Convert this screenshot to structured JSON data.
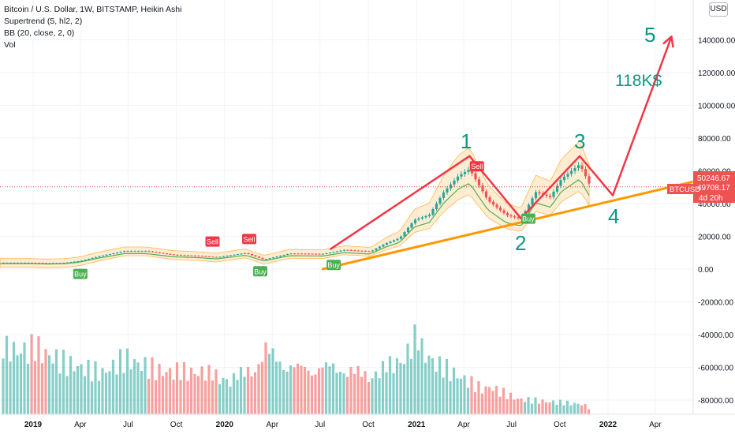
{
  "legend": {
    "title": "Bitcoin / U.S. Dollar, 1W, BITSTAMP, Heikin Ashi",
    "indicator1": "Supertrend (5, hl2, 2)",
    "indicator2": "BB (20, close, 2, 0)",
    "indicator3": "Vol"
  },
  "currency_button": "USD",
  "price_tags": {
    "upper_value": "50246.67",
    "lower_value": "49708.17",
    "countdown": "4d 20h",
    "symbol": "BTCUSD"
  },
  "colors": {
    "up": "#26a69a",
    "down": "#ef5350",
    "drawing": "#f23645",
    "trendline": "#ff9800",
    "wave_label": "#089981",
    "bb_fill": "#ffcc80"
  },
  "annotations": {
    "wave_1": "1",
    "wave_2": "2",
    "wave_3": "3",
    "wave_4": "4",
    "wave_5": "5",
    "target": "118K$"
  },
  "signals": [
    {
      "label": "Sell",
      "date": "2021-04-26"
    },
    {
      "label": "Buy",
      "date": "2021-08-02"
    },
    {
      "label": "Buy",
      "date": "2019-04-01"
    },
    {
      "label": "Sell",
      "date": "2019-12-09"
    },
    {
      "label": "Sell",
      "date": "2020-02-17"
    },
    {
      "label": "Buy",
      "date": "2020-03-09"
    },
    {
      "label": "Buy",
      "date": "2020-07-27"
    }
  ],
  "chart_data": {
    "type": "candlestick",
    "style": "Heikin Ashi",
    "interval": "1W",
    "x_ticks": [
      "2019",
      "Apr",
      "Jul",
      "Oct",
      "2020",
      "Apr",
      "Jul",
      "Oct",
      "2021",
      "Apr",
      "Jul",
      "Oct",
      "2022",
      "Apr"
    ],
    "y_ticks": [
      "140000.00",
      "120000.00",
      "100000.00",
      "80000.00",
      "60000.00",
      "40000.00",
      "20000.00",
      "0.00",
      "-20000.00",
      "-40000.00",
      "-60000.00",
      "-80000.00"
    ],
    "y_range": [
      -85000,
      160000
    ],
    "price_series": {
      "name": "BTCUSD",
      "dates": [
        "2018-12-24",
        "2019-01-28",
        "2019-03-04",
        "2019-04-01",
        "2019-05-06",
        "2019-06-24",
        "2019-08-05",
        "2019-09-23",
        "2019-11-18",
        "2019-12-16",
        "2020-02-10",
        "2020-03-16",
        "2020-05-04",
        "2020-07-06",
        "2020-08-17",
        "2020-10-05",
        "2020-11-02",
        "2020-11-30",
        "2020-12-28",
        "2021-01-25",
        "2021-02-22",
        "2021-03-22",
        "2021-04-12",
        "2021-05-17",
        "2021-06-21",
        "2021-07-19",
        "2021-08-16",
        "2021-09-13",
        "2021-10-04",
        "2021-11-08",
        "2021-11-29"
      ],
      "close": [
        3900,
        3600,
        3900,
        5000,
        7800,
        11000,
        11000,
        8800,
        8000,
        7200,
        9800,
        5800,
        9500,
        9300,
        11700,
        10700,
        15500,
        19000,
        30000,
        33000,
        47000,
        57000,
        61000,
        42000,
        33000,
        30500,
        47000,
        44000,
        55000,
        64000,
        50246.67
      ]
    },
    "wave_path": {
      "dates": [
        "2020-07-20",
        "2021-04-12",
        "2021-07-19",
        "2021-11-08",
        "2022-01-10",
        "2022-05-02"
      ],
      "prices": [
        12000,
        69000,
        31000,
        69000,
        45000,
        142000
      ]
    },
    "trendline": {
      "dates": [
        "2020-07-06",
        "2022-07-04"
      ],
      "prices": [
        0,
        55000
      ]
    },
    "volume": {
      "dates": [
        "2019-01-07",
        "2019-03-04",
        "2019-05-13",
        "2019-06-24",
        "2019-09-02",
        "2019-11-18",
        "2020-01-13",
        "2020-03-09",
        "2020-03-16",
        "2020-05-11",
        "2020-07-27",
        "2020-10-05",
        "2020-12-07",
        "2021-01-04",
        "2021-01-11",
        "2021-02-08",
        "2021-05-10",
        "2021-05-17",
        "2021-07-12",
        "2021-09-06",
        "2021-11-15",
        "2021-11-29"
      ],
      "values": [
        84000,
        64000,
        51000,
        69000,
        54000,
        55000,
        45000,
        67000,
        86000,
        62000,
        63000,
        51000,
        73000,
        101000,
        83000,
        64000,
        30000,
        35000,
        19000,
        16000,
        13000,
        6000
      ]
    }
  }
}
